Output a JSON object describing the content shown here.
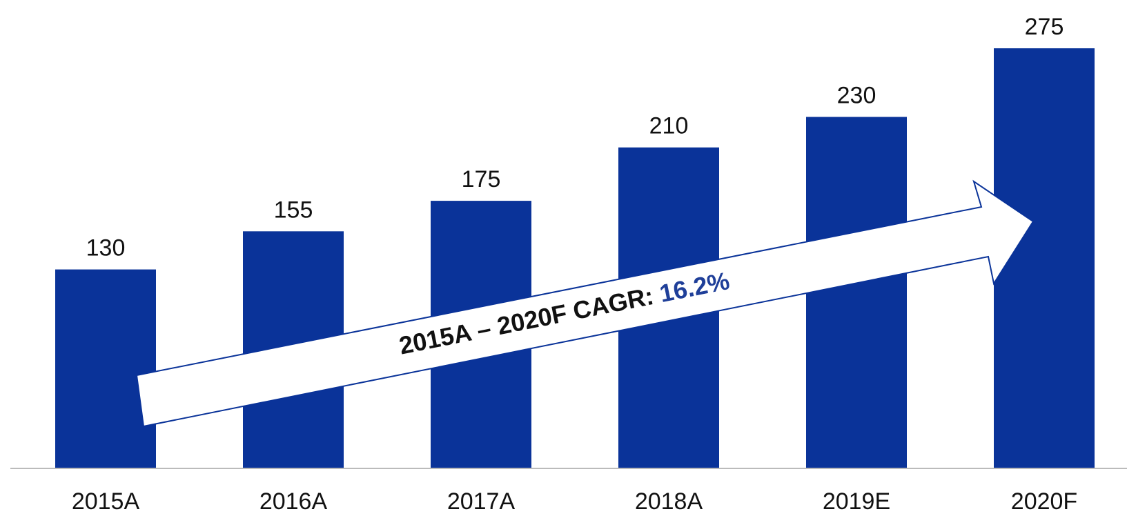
{
  "chart_data": {
    "type": "bar",
    "categories": [
      "2015A",
      "2016A",
      "2017A",
      "2018A",
      "2019E",
      "2020F"
    ],
    "values": [
      130,
      155,
      175,
      210,
      230,
      275
    ],
    "color": "#0a3399",
    "annotation": {
      "text": "2015A – 2020F CAGR:",
      "highlight": "16.2%",
      "highlight_color": "#1f3f99"
    }
  }
}
